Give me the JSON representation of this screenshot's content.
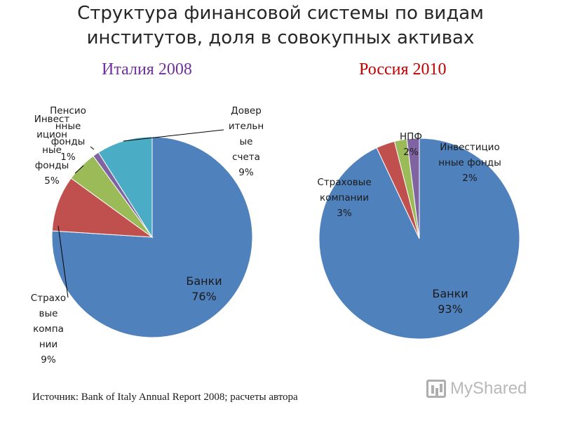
{
  "title_lines": [
    "Структура финансовой системы по видам",
    "институтов, доля в совокупных активах"
  ],
  "colors": {
    "banks": "#4F81BD",
    "insurance": "#C0504D",
    "investment": "#9BBB59",
    "npf": "#8064A2",
    "trust": "#4BACC6",
    "italy_heading": "#7030A0",
    "russia_heading": "#C00000"
  },
  "chart_data": [
    {
      "type": "pie",
      "title": "Италия 2008",
      "slices": [
        {
          "key": "banks",
          "label_lines": [
            "Банки",
            "76%"
          ],
          "value": 76
        },
        {
          "key": "insurance",
          "label_lines": [
            "Страхо",
            "вые",
            "компа",
            "нии",
            "9%"
          ],
          "value": 9
        },
        {
          "key": "investment",
          "label_lines": [
            "Инвест",
            "ицион",
            "ные",
            "фонды",
            "5%"
          ],
          "value": 5
        },
        {
          "key": "npf",
          "label_lines": [
            "Пенсио",
            "нные",
            "фонды",
            "1%"
          ],
          "value": 1
        },
        {
          "key": "trust",
          "label_lines": [
            "Довер",
            "ительн",
            "ые",
            "счета",
            "9%"
          ],
          "value": 9
        }
      ]
    },
    {
      "type": "pie",
      "title": "Россия  2010",
      "slices": [
        {
          "key": "banks",
          "label_lines": [
            "Банки",
            "93%"
          ],
          "value": 93
        },
        {
          "key": "insurance",
          "label_lines": [
            "Страховые",
            "компании",
            "3%"
          ],
          "value": 3
        },
        {
          "key": "investment",
          "label_lines": [
            "Инвестицио",
            "нные фонды",
            "2%"
          ],
          "value": 2
        },
        {
          "key": "npf",
          "label_lines": [
            "НПФ",
            "2%"
          ],
          "value": 2
        }
      ]
    }
  ],
  "source": "Источник: Bank of Italy Annual Report 2008; расчеты автора",
  "watermark": "MyShared"
}
